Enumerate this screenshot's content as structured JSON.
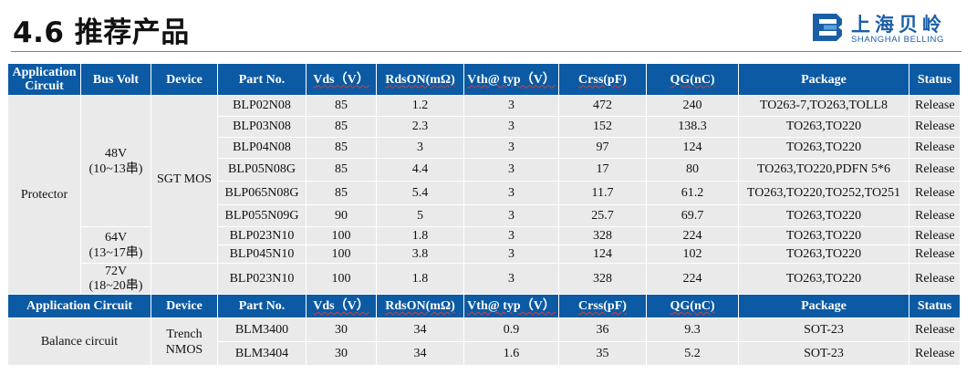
{
  "page_title": "4.6 推荐产品",
  "logo": {
    "name_cn": "上海贝岭",
    "name_en": "SHANGHAI BELLING"
  },
  "colors": {
    "header_bg": "#0b5aa3",
    "cell_bg": "#eaeaea",
    "brand": "#1a5fa6"
  },
  "table1": {
    "headers": {
      "application": "Application Circuit",
      "bus_volt": "Bus Volt",
      "device": "Device",
      "part_no": "Part No.",
      "vds": "Vds（V）",
      "rdson": "RdsON(mΩ)",
      "vth": "Vth@ typ（V）",
      "crss": "Crss(pF)",
      "qg": "QG(nC)",
      "package": "Package",
      "status": "Status"
    },
    "application": "Protector",
    "device": "SGT MOS",
    "bus_groups": [
      {
        "volt": "48V",
        "range": "(10~13串)"
      },
      {
        "volt": "64V",
        "range": "(13~17串)"
      },
      {
        "volt": "72V",
        "range": "(18~20串)"
      }
    ],
    "rows": [
      {
        "part": "BLP02N08",
        "vds": "85",
        "rdson": "1.2",
        "vth": "3",
        "crss": "472",
        "qg": "240",
        "package": "TO263-7,TO263,TOLL8",
        "status": "Release"
      },
      {
        "part": "BLP03N08",
        "vds": "85",
        "rdson": "2.3",
        "vth": "3",
        "crss": "152",
        "qg": "138.3",
        "package": "TO263,TO220",
        "status": "Release"
      },
      {
        "part": "BLP04N08",
        "vds": "85",
        "rdson": "3",
        "vth": "3",
        "crss": "97",
        "qg": "124",
        "package": "TO263,TO220",
        "status": "Release"
      },
      {
        "part": "BLP05N08G",
        "vds": "85",
        "rdson": "4.4",
        "vth": "3",
        "crss": "17",
        "qg": "80",
        "package": "TO263,TO220,PDFN 5*6",
        "status": "Release"
      },
      {
        "part": "BLP065N08G",
        "vds": "85",
        "rdson": "5.4",
        "vth": "3",
        "crss": "11.7",
        "qg": "61.2",
        "package": "TO263,TO220,TO252,TO251",
        "status": "Release"
      },
      {
        "part": "BLP055N09G",
        "vds": "90",
        "rdson": "5",
        "vth": "3",
        "crss": "25.7",
        "qg": "69.7",
        "package": "TO263,TO220",
        "status": "Release"
      },
      {
        "part": "BLP023N10",
        "vds": "100",
        "rdson": "1.8",
        "vth": "3",
        "crss": "328",
        "qg": "224",
        "package": "TO263,TO220",
        "status": "Release"
      },
      {
        "part": "BLP045N10",
        "vds": "100",
        "rdson": "3.8",
        "vth": "3",
        "crss": "124",
        "qg": "102",
        "package": "TO263,TO220",
        "status": "Release"
      },
      {
        "part": "BLP023N10",
        "vds": "100",
        "rdson": "1.8",
        "vth": "3",
        "crss": "328",
        "qg": "224",
        "package": "TO263,TO220",
        "status": "Release"
      }
    ]
  },
  "table2": {
    "headers": {
      "application": "Application Circuit",
      "device": "Device",
      "part_no": "Part No.",
      "vds": "Vds（V）",
      "rdson": "RdsON(mΩ)",
      "vth": "Vth@ typ（V）",
      "crss": "Crss(pF)",
      "qg": "QG(nC)",
      "package": "Package",
      "status": "Status"
    },
    "application": "Balance circuit",
    "device_line1": "Trench",
    "device_line2": "NMOS",
    "rows": [
      {
        "part": "BLM3400",
        "vds": "30",
        "rdson": "34",
        "vth": "0.9",
        "crss": "36",
        "qg": "9.3",
        "package": "SOT-23",
        "status": "Release"
      },
      {
        "part": "BLM3404",
        "vds": "30",
        "rdson": "34",
        "vth": "1.6",
        "crss": "35",
        "qg": "5.2",
        "package": "SOT-23",
        "status": "Release"
      }
    ]
  }
}
